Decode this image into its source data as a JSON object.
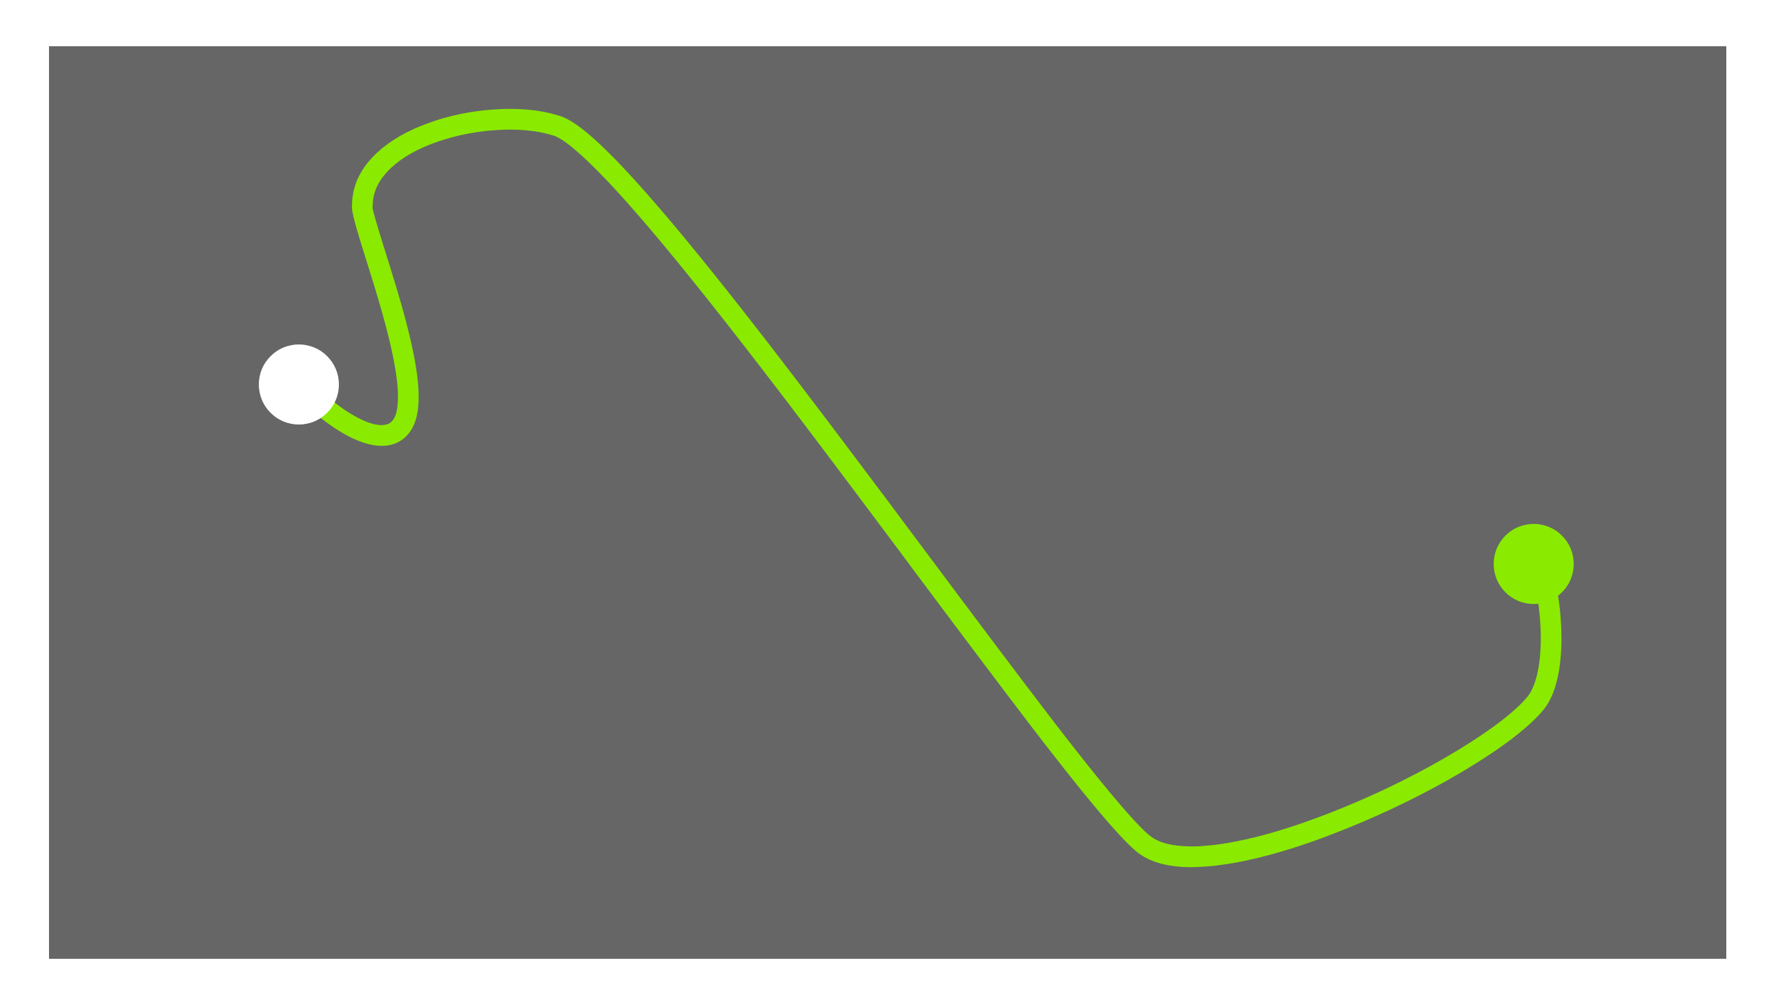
{
  "colors": {
    "page_background": "#ffffff",
    "board_background": "#666666",
    "path_stroke": "#8aea00",
    "start_node": "#ffffff",
    "end_node": "#8aea00"
  },
  "nodes": {
    "start": {
      "name": "start-node",
      "color_key": "start_node"
    },
    "end": {
      "name": "end-node",
      "color_key": "end_node"
    }
  },
  "path": {
    "name": "curved-connection-path",
    "color_key": "path_stroke"
  }
}
